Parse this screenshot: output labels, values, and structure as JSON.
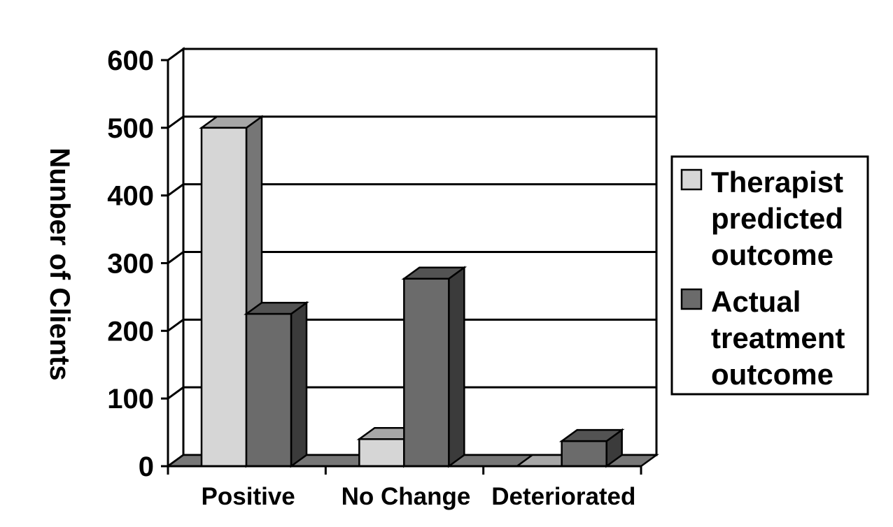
{
  "chart_data": {
    "type": "bar",
    "title": "",
    "xlabel": "",
    "ylabel": "Nunber of Clients",
    "categories": [
      "Positive",
      "No Change",
      "Deteriorated"
    ],
    "series": [
      {
        "name": "Therapist predicted outcome",
        "values": [
          500,
          40,
          0
        ],
        "color": "#d6d6d6"
      },
      {
        "name": "Actual treatment outcome",
        "values": [
          225,
          277,
          37
        ],
        "color": "#6b6b6b"
      }
    ],
    "ylim": [
      0,
      600
    ],
    "yticks": [
      "0",
      "100",
      "200",
      "300",
      "400",
      "500",
      "600"
    ],
    "grid": true,
    "legend_position": "right",
    "style": "3d-bar"
  },
  "legend": {
    "series1_lines": [
      "Therapist",
      "predicted",
      "outcome"
    ],
    "series2_lines": [
      "Actual",
      "treatment",
      "outcome"
    ]
  }
}
